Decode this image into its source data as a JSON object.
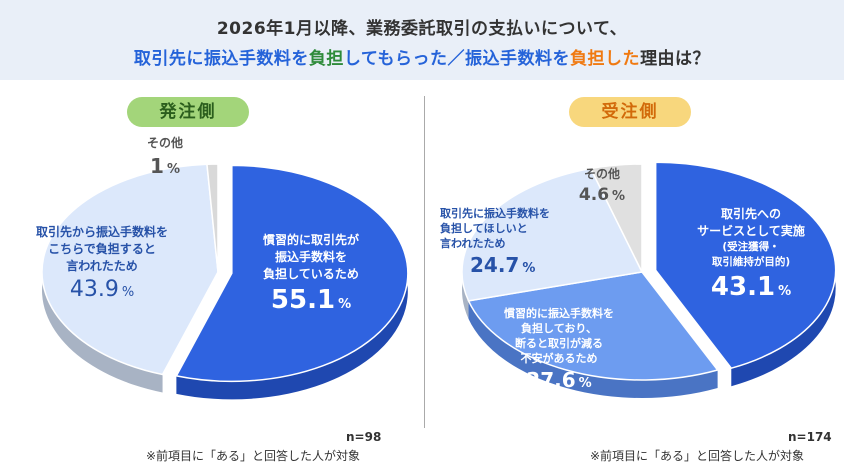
{
  "title": {
    "line1": "2026年1月以降、業務委託取引の支払いについて、",
    "line2_parts": [
      {
        "text": "取引先に振込手数料を",
        "color": "blue"
      },
      {
        "text": "負担",
        "color": "green"
      },
      {
        "text": "してもらった／振込手数料を",
        "color": "blue"
      },
      {
        "text": "負担した",
        "color": "orange"
      },
      {
        "text": "理由は？",
        "color": "none"
      }
    ]
  },
  "chart_data": [
    {
      "type": "pie",
      "panel": "発注側",
      "n": "n=98",
      "note": "※前項目に「ある」と回答した人が対象",
      "slices": [
        {
          "label": "慣習的に取引先が振込手数料を負担しているため",
          "value": 55.1,
          "display": "55.1"
        },
        {
          "label": "取引先から振込手数料をこちらで負担すると言われたため",
          "value": 43.9,
          "display": "43.9"
        },
        {
          "label": "その他",
          "value": 1,
          "display": "1"
        }
      ]
    },
    {
      "type": "pie",
      "panel": "受注側",
      "n": "n=174",
      "note": "※前項目に「ある」と回答した人が対象",
      "slices": [
        {
          "label": "取引先へのサービスとして実施（受注獲得・取引維持が目的）",
          "value": 43.1,
          "display": "43.1"
        },
        {
          "label": "慣習的に振込手数料を負担しており、断ると取引が減る不安があるため",
          "value": 27.6,
          "display": "27.6"
        },
        {
          "label": "取引先に振込手数料を負担してほしいと言われたため",
          "value": 24.7,
          "display": "24.7"
        },
        {
          "label": "その他",
          "value": 4.6,
          "display": "4.6"
        }
      ]
    }
  ],
  "labels": {
    "left": {
      "s0": {
        "lines": [
          "慣習的に取引先が",
          "振込手数料を",
          "負担しているため"
        ],
        "value": "55.1",
        "unit": "%"
      },
      "s1": {
        "lines": [
          "取引先から振込手数料を",
          "こちらで負担すると",
          "言われたため"
        ],
        "value": "43.9",
        "unit": "%"
      },
      "s2": {
        "lines": [
          "その他"
        ],
        "value": "1",
        "unit": "%"
      }
    },
    "right": {
      "s0": {
        "lines": [
          "取引先への",
          "サービスとして実施"
        ],
        "sub": [
          "(受注獲得・",
          "取引維持が目的)"
        ],
        "value": "43.1",
        "unit": "%"
      },
      "s1": {
        "lines": [
          "慣習的に振込手数料を",
          "負担しており、",
          "断ると取引が減る",
          "不安があるため"
        ],
        "value": "27.6",
        "unit": "%"
      },
      "s2": {
        "lines": [
          "取引先に振込手数料を",
          "負担してほしいと",
          "言われたため"
        ],
        "value": "24.7",
        "unit": "%"
      },
      "s3": {
        "lines": [
          "その他"
        ],
        "value": "4.6",
        "unit": "%"
      }
    }
  },
  "colors": {
    "left": [
      "#2f63e0",
      "#dce8fb",
      "#d9d9d9"
    ],
    "left_side": [
      "#1f48b0",
      "#a8b3c4",
      "#b0b0b0"
    ],
    "right": [
      "#2f63e0",
      "#6d9cf0",
      "#dce8fb",
      "#e0e0e0"
    ],
    "right_side": [
      "#1f48b0",
      "#4a74c4",
      "#a8b3c4",
      "#b5b5b5"
    ]
  }
}
